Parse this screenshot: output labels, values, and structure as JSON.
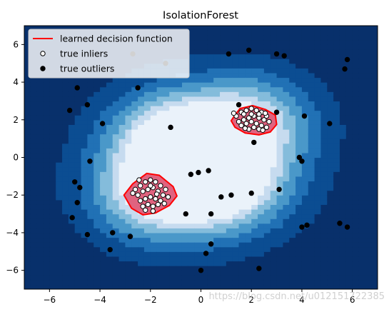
{
  "chart_data": {
    "type": "scatter",
    "title": "IsolationForest",
    "xlabel": "",
    "ylabel": "",
    "xlim": [
      -7,
      7
    ],
    "ylim": [
      -7,
      7
    ],
    "xticks": [
      -6,
      -4,
      -2,
      0,
      2,
      4,
      6
    ],
    "yticks": [
      -6,
      -4,
      -2,
      0,
      2,
      4,
      6
    ],
    "grid": false,
    "legend_position": "top-left",
    "legend": [
      {
        "label": "learned decision function",
        "kind": "line",
        "color": "#ff0000"
      },
      {
        "label": "true inliers",
        "kind": "hollow-marker",
        "color": "#000000"
      },
      {
        "label": "true outliers",
        "kind": "filled-marker",
        "color": "#000000"
      }
    ],
    "colors": {
      "levels": [
        "#08306b",
        "#0b4d92",
        "#2171b5",
        "#4a98c9",
        "#84bcdb",
        "#c6dbef",
        "#eaf2fa"
      ],
      "inlier_region_fill": "#e0637f",
      "decision_line": "#ff0000"
    },
    "decision_regions": [
      {
        "name": "cluster-upper-right",
        "polygon": [
          [
            1.35,
            2.25
          ],
          [
            1.55,
            2.6
          ],
          [
            2.05,
            2.75
          ],
          [
            2.55,
            2.55
          ],
          [
            2.95,
            2.25
          ],
          [
            3.0,
            1.75
          ],
          [
            2.75,
            1.35
          ],
          [
            2.3,
            1.2
          ],
          [
            1.75,
            1.3
          ],
          [
            1.35,
            1.6
          ],
          [
            1.2,
            1.95
          ]
        ]
      },
      {
        "name": "cluster-lower-left",
        "polygon": [
          [
            -3.05,
            -2.0
          ],
          [
            -2.7,
            -1.4
          ],
          [
            -2.15,
            -0.85
          ],
          [
            -1.65,
            -0.95
          ],
          [
            -1.1,
            -1.55
          ],
          [
            -0.95,
            -2.05
          ],
          [
            -1.25,
            -2.55
          ],
          [
            -1.8,
            -2.95
          ],
          [
            -2.3,
            -3.05
          ],
          [
            -2.75,
            -2.7
          ]
        ]
      }
    ],
    "series": [
      {
        "name": "true inliers",
        "style": "hollow",
        "points": [
          [
            1.4,
            2.2
          ],
          [
            1.6,
            2.4
          ],
          [
            1.8,
            2.5
          ],
          [
            2.0,
            2.6
          ],
          [
            2.2,
            2.5
          ],
          [
            2.4,
            2.4
          ],
          [
            2.6,
            2.2
          ],
          [
            1.5,
            1.9
          ],
          [
            1.7,
            2.0
          ],
          [
            1.9,
            2.1
          ],
          [
            2.1,
            2.2
          ],
          [
            2.3,
            2.1
          ],
          [
            2.5,
            2.0
          ],
          [
            2.7,
            1.9
          ],
          [
            1.6,
            1.7
          ],
          [
            1.8,
            1.8
          ],
          [
            2.0,
            1.9
          ],
          [
            2.2,
            1.8
          ],
          [
            2.4,
            1.7
          ],
          [
            2.6,
            1.6
          ],
          [
            1.9,
            1.5
          ],
          [
            2.1,
            1.6
          ],
          [
            2.3,
            1.5
          ],
          [
            1.7,
            2.3
          ],
          [
            2.0,
            2.3
          ],
          [
            2.3,
            2.3
          ],
          [
            1.75,
            1.55
          ],
          [
            2.55,
            2.35
          ],
          [
            1.3,
            2.35
          ],
          [
            2.45,
            1.45
          ],
          [
            -2.6,
            -1.7
          ],
          [
            -2.4,
            -1.5
          ],
          [
            -2.2,
            -1.3
          ],
          [
            -2.0,
            -1.2
          ],
          [
            -1.8,
            -1.3
          ],
          [
            -1.6,
            -1.5
          ],
          [
            -1.4,
            -1.7
          ],
          [
            -2.5,
            -2.0
          ],
          [
            -2.3,
            -1.8
          ],
          [
            -2.1,
            -1.7
          ],
          [
            -1.9,
            -1.6
          ],
          [
            -1.7,
            -1.8
          ],
          [
            -1.5,
            -2.0
          ],
          [
            -1.3,
            -2.1
          ],
          [
            -2.4,
            -2.3
          ],
          [
            -2.2,
            -2.2
          ],
          [
            -2.0,
            -2.1
          ],
          [
            -1.8,
            -2.2
          ],
          [
            -1.6,
            -2.3
          ],
          [
            -2.1,
            -2.5
          ],
          [
            -1.9,
            -2.6
          ],
          [
            -1.7,
            -2.5
          ],
          [
            -2.3,
            -2.6
          ],
          [
            -2.0,
            -1.5
          ],
          [
            -1.75,
            -1.95
          ],
          [
            -2.45,
            -1.2
          ],
          [
            -2.7,
            -1.9
          ],
          [
            -1.45,
            -2.45
          ],
          [
            -2.2,
            -2.8
          ],
          [
            -1.9,
            -2.85
          ]
        ]
      },
      {
        "name": "true outliers",
        "style": "filled",
        "points": [
          [
            -2.7,
            5.5
          ],
          [
            -1.4,
            5.0
          ],
          [
            1.1,
            5.5
          ],
          [
            1.9,
            5.7
          ],
          [
            3.0,
            5.5
          ],
          [
            3.3,
            5.4
          ],
          [
            5.8,
            5.2
          ],
          [
            5.7,
            4.7
          ],
          [
            -4.9,
            3.7
          ],
          [
            -2.5,
            3.7
          ],
          [
            -4.5,
            2.8
          ],
          [
            -5.2,
            2.5
          ],
          [
            -3.9,
            1.8
          ],
          [
            -1.2,
            1.6
          ],
          [
            1.5,
            2.8
          ],
          [
            3.0,
            2.4
          ],
          [
            4.1,
            2.2
          ],
          [
            5.1,
            1.8
          ],
          [
            2.1,
            0.8
          ],
          [
            3.9,
            0.0
          ],
          [
            4.0,
            -0.2
          ],
          [
            -4.4,
            -0.2
          ],
          [
            -5.0,
            -1.3
          ],
          [
            -4.8,
            -1.6
          ],
          [
            -0.4,
            -0.9
          ],
          [
            -0.1,
            -0.8
          ],
          [
            0.3,
            -0.7
          ],
          [
            0.8,
            -2.1
          ],
          [
            1.2,
            -2.0
          ],
          [
            2.0,
            -1.9
          ],
          [
            3.1,
            -1.7
          ],
          [
            -4.9,
            -2.4
          ],
          [
            -5.1,
            -3.2
          ],
          [
            -0.6,
            -3.0
          ],
          [
            0.4,
            -3.0
          ],
          [
            -4.5,
            -4.1
          ],
          [
            -3.5,
            -4.0
          ],
          [
            -2.8,
            -4.2
          ],
          [
            4.0,
            -3.7
          ],
          [
            4.2,
            -3.6
          ],
          [
            5.5,
            -3.5
          ],
          [
            5.8,
            -3.7
          ],
          [
            -3.6,
            -4.9
          ],
          [
            0.4,
            -4.6
          ],
          [
            0.2,
            -5.1
          ],
          [
            2.3,
            -5.9
          ],
          [
            0.0,
            -6.0
          ]
        ]
      }
    ]
  },
  "watermark_text": "https://blog.csdn.net/u012151722385"
}
